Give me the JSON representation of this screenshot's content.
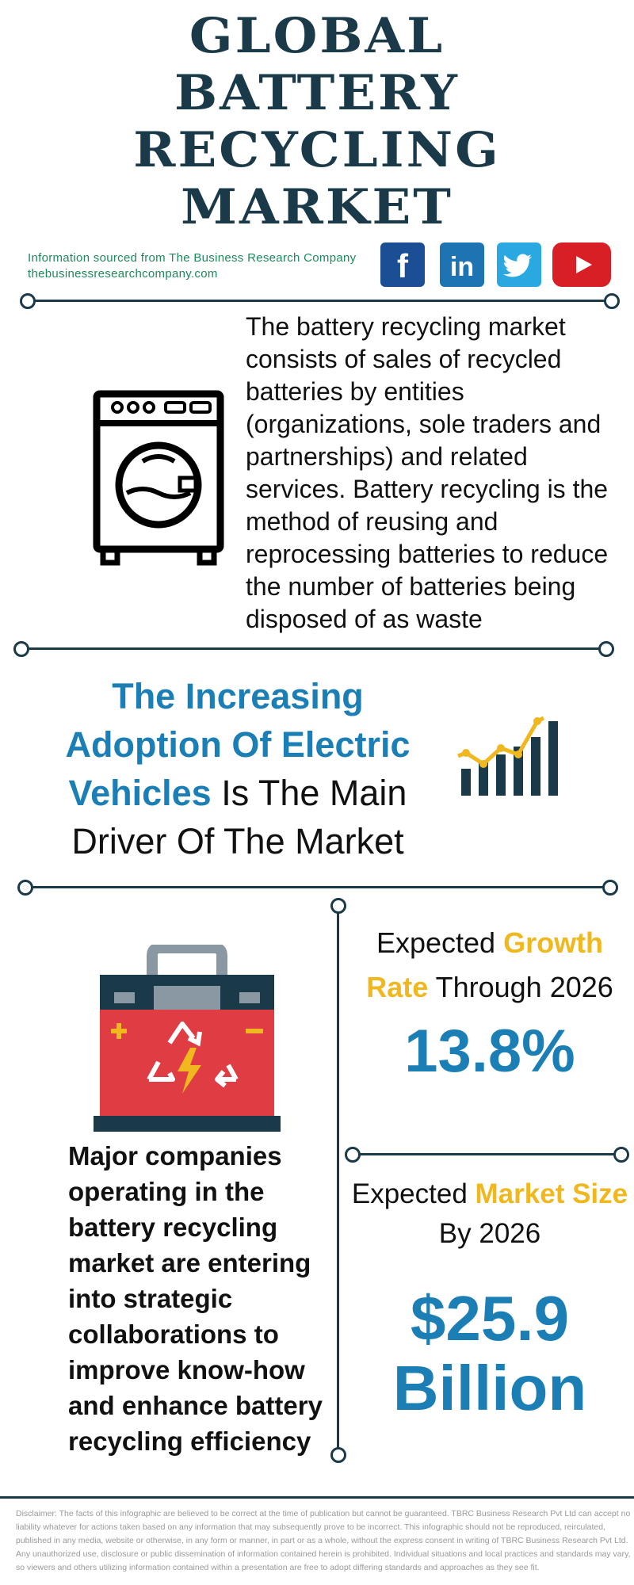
{
  "title": {
    "line1": "GLOBAL",
    "line2": "BATTERY",
    "line3": "RECYCLING",
    "line4": "MARKET"
  },
  "source": {
    "line1": "Information sourced from The Business Research Company",
    "line2": "thebusinessresearchcompany.com"
  },
  "social": [
    {
      "name": "facebook",
      "glyph": "f",
      "color": "#1a4f95"
    },
    {
      "name": "linkedin",
      "glyph": "in",
      "color": "#1e73b3"
    },
    {
      "name": "twitter",
      "glyph": "twitter-bird",
      "color": "#2aa9e0"
    },
    {
      "name": "youtube",
      "glyph": "play",
      "color": "#d81f26"
    }
  ],
  "description": "The battery recycling market consists of sales of recycled batteries by entities (organizations, sole traders and partnerships) and related services. Battery recycling is the method of reusing and reprocessing batteries to reduce the number of batteries being disposed of as waste",
  "driver": {
    "highlight": "The Increasing Adoption Of Electric Vehicles",
    "rest": "Is The Main Driver Of The Market"
  },
  "growth": {
    "label_pre": "Expected ",
    "label_highlight_1": "Growth",
    "label_highlight_2": "Rate",
    "label_post": " Through 2026",
    "value": "13.8%"
  },
  "market_size": {
    "label_pre": "Expected ",
    "label_highlight": "Market Size",
    "label_post": "By 2026",
    "value_line1": "$25.9",
    "value_line2": "Billion"
  },
  "companies": "Major companies operating in the battery recycling market are entering into strategic collaborations to improve know-how and enhance battery recycling efficiency",
  "disclaimer": "Disclaimer: The facts of this infographic are believed to be correct at the time of publication but cannot be guaranteed. TBRC Business Research Pvt Ltd can accept no liability whatever for actions taken based on any information that may subsequently prove to be incorrect. This infographic should not be reproduced, reirculated, published in any media, website or otherwise, in any form or manner, in part or as a whole, without the express consent in writing of TBRC Business Research Pvt Ltd. Any unauthorized use, disclosure or public dissemination of information contained herein is prohibited. Individual situations and local practices and standards may vary, so viewers and others utilizing information contained within a presentation are free to adopt differing standards and approaches as they see fit.",
  "colors": {
    "navy": "#1a3a4a",
    "blue": "#1b7fb5",
    "yellow": "#f0b81e",
    "green": "#1e8a5a",
    "battery_red": "#e03c44"
  }
}
